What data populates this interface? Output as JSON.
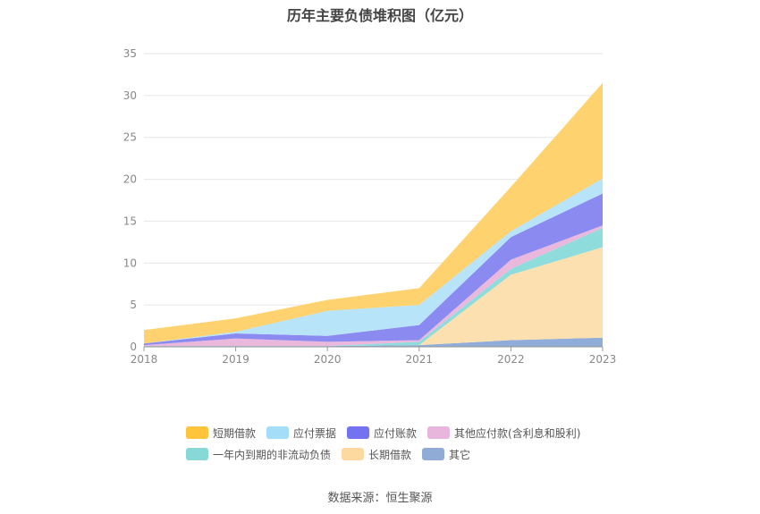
{
  "chart_data": {
    "type": "area",
    "title": "历年主要负债堆积图（亿元）",
    "stacked": true,
    "x": [
      "2018",
      "2019",
      "2020",
      "2021",
      "2022",
      "2023"
    ],
    "ylim": [
      0,
      35
    ],
    "yticks": [
      0,
      5,
      10,
      15,
      20,
      25,
      30,
      35
    ],
    "grid": true,
    "legend_position": "bottom",
    "series": [
      {
        "name": "其它",
        "color": "#90acd8",
        "values": [
          0.1,
          0.1,
          0.1,
          0.2,
          0.8,
          1.1
        ]
      },
      {
        "name": "长期借款",
        "color": "#fde0b0",
        "values": [
          0,
          0,
          0,
          0,
          7.8,
          10.8
        ]
      },
      {
        "name": "一年内到期的非流动负债",
        "color": "#8fdcdc",
        "values": [
          0,
          0,
          0,
          0.4,
          0.7,
          2.3
        ]
      },
      {
        "name": "其他应付款(含利息和股利)",
        "color": "#eab8dc",
        "values": [
          0.1,
          0.9,
          0.5,
          0.2,
          1.1,
          0.3
        ]
      },
      {
        "name": "应付账款",
        "color": "#8a8af0",
        "values": [
          0.2,
          0.6,
          0.7,
          1.8,
          2.7,
          3.8
        ]
      },
      {
        "name": "应付票据",
        "color": "#b8e4fa",
        "values": [
          0,
          0.2,
          3,
          2.4,
          0.7,
          1.8
        ]
      },
      {
        "name": "短期借款",
        "color": "#fdd26f",
        "values": [
          1.6,
          1.6,
          1.3,
          2,
          5.3,
          11.4
        ]
      }
    ]
  },
  "legend": {
    "rows": [
      [
        {
          "label": "短期借款",
          "color": "#fdc43c"
        },
        {
          "label": "应付票据",
          "color": "#a4ddf8"
        },
        {
          "label": "应付账款",
          "color": "#7373ef"
        },
        {
          "label": "其他应付款(含利息和股利)",
          "color": "#e8b6dc"
        }
      ],
      [
        {
          "label": "一年内到期的非流动负债",
          "color": "#88d8d8"
        },
        {
          "label": "长期借款",
          "color": "#fdd9a0"
        },
        {
          "label": "其它",
          "color": "#8fabd6"
        }
      ]
    ]
  },
  "source": "数据来源：恒生聚源"
}
